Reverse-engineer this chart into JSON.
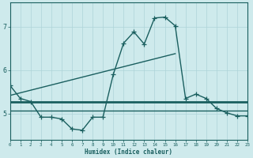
{
  "xlabel": "Humidex (Indice chaleur)",
  "background_color": "#ceeaec",
  "line_color": "#1a5f5f",
  "grid_color": "#aed4d8",
  "x_values": [
    0,
    1,
    2,
    3,
    4,
    5,
    6,
    7,
    8,
    9,
    10,
    11,
    12,
    13,
    14,
    15,
    16,
    17,
    18,
    19,
    20,
    21,
    22,
    23
  ],
  "y_main": [
    5.65,
    5.35,
    5.28,
    4.92,
    4.92,
    4.88,
    4.65,
    4.62,
    4.92,
    4.92,
    5.9,
    6.62,
    6.88,
    6.6,
    7.2,
    7.22,
    7.02,
    5.35,
    5.45,
    5.35,
    5.12,
    5.02,
    4.95,
    4.95
  ],
  "y_upper_hline": 5.28,
  "y_lower_hline": 5.08,
  "xlim": [
    0,
    23
  ],
  "ylim": [
    4.4,
    7.55
  ],
  "yticks": [
    5,
    6,
    7
  ],
  "xticks": [
    0,
    1,
    2,
    3,
    4,
    5,
    6,
    7,
    8,
    9,
    10,
    11,
    12,
    13,
    14,
    15,
    16,
    17,
    18,
    19,
    20,
    21,
    22,
    23
  ],
  "marker_size": 4,
  "line_width": 1.0,
  "hline_lw_upper": 2.0,
  "hline_lw_lower": 1.0
}
